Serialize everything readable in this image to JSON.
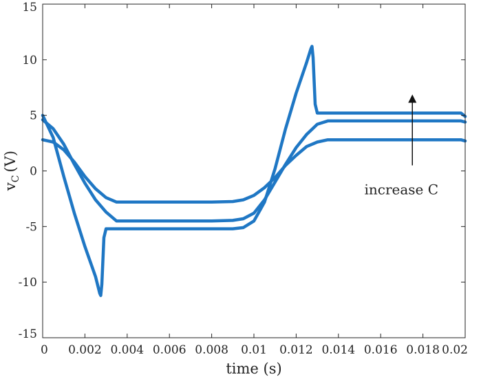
{
  "chart_data": {
    "type": "line",
    "title": "",
    "xlabel": "time (s)",
    "ylabel": "v",
    "ylabel_sub": "C",
    "ylabel_unit": "(V)",
    "xlim": [
      0,
      0.02
    ],
    "ylim": [
      -15,
      15
    ],
    "grid": false,
    "line_color": "#1f77c4",
    "x_ticks": [
      0,
      0.002,
      0.004,
      0.006,
      0.008,
      0.01,
      0.012,
      0.014,
      0.016,
      0.018,
      0.02
    ],
    "x_tick_labels": [
      "0",
      "0.002",
      "0.004",
      "0.006",
      "0.008",
      "0.01",
      "0.012",
      "0.014",
      "0.016",
      "0.018",
      "0.02"
    ],
    "y_ticks": [
      -15,
      -10,
      -5,
      0,
      5,
      10,
      15
    ],
    "y_tick_labels": [
      "-15",
      "-10",
      "-5",
      "0",
      "5",
      "10",
      "15"
    ],
    "series": [
      {
        "x": [
          0,
          0.0005,
          0.001,
          0.0015,
          0.002,
          0.0025,
          0.0027,
          0.00275,
          0.0028,
          0.0029,
          0.003,
          0.004,
          0.005,
          0.006,
          0.007,
          0.008,
          0.009,
          0.0095,
          0.01,
          0.0105,
          0.011,
          0.0115,
          0.012,
          0.0125,
          0.0127,
          0.01275,
          0.0128,
          0.0129,
          0.013,
          0.014,
          0.015,
          0.016,
          0.017,
          0.018,
          0.019,
          0.0198,
          0.02
        ],
        "y": [
          5.0,
          3.0,
          -0.5,
          -3.8,
          -6.8,
          -9.5,
          -11.0,
          -11.2,
          -10.2,
          -6.0,
          -5.2,
          -5.2,
          -5.2,
          -5.2,
          -5.2,
          -5.2,
          -5.2,
          -5.1,
          -4.5,
          -2.8,
          0.2,
          3.8,
          7.0,
          9.8,
          11.0,
          11.2,
          10.2,
          6.0,
          5.2,
          5.2,
          5.2,
          5.2,
          5.2,
          5.2,
          5.2,
          5.2,
          4.9
        ]
      },
      {
        "x": [
          0,
          0.0005,
          0.001,
          0.0015,
          0.002,
          0.0025,
          0.003,
          0.0035,
          0.004,
          0.005,
          0.006,
          0.007,
          0.008,
          0.009,
          0.0095,
          0.01,
          0.0105,
          0.011,
          0.0115,
          0.012,
          0.0125,
          0.013,
          0.0135,
          0.014,
          0.015,
          0.016,
          0.017,
          0.018,
          0.019,
          0.0198,
          0.02
        ],
        "y": [
          4.6,
          3.8,
          2.4,
          0.6,
          -1.1,
          -2.6,
          -3.7,
          -4.5,
          -4.5,
          -4.5,
          -4.5,
          -4.5,
          -4.5,
          -4.45,
          -4.3,
          -3.8,
          -2.6,
          -1.0,
          0.6,
          2.1,
          3.3,
          4.2,
          4.5,
          4.5,
          4.5,
          4.5,
          4.5,
          4.5,
          4.5,
          4.5,
          4.4
        ]
      },
      {
        "x": [
          0,
          0.0005,
          0.001,
          0.0015,
          0.002,
          0.0025,
          0.003,
          0.0035,
          0.004,
          0.005,
          0.006,
          0.007,
          0.008,
          0.009,
          0.0095,
          0.01,
          0.0105,
          0.011,
          0.0115,
          0.012,
          0.0125,
          0.013,
          0.0135,
          0.014,
          0.015,
          0.016,
          0.017,
          0.018,
          0.019,
          0.0198,
          0.02
        ],
        "y": [
          2.8,
          2.6,
          1.9,
          0.8,
          -0.5,
          -1.6,
          -2.4,
          -2.8,
          -2.8,
          -2.8,
          -2.8,
          -2.8,
          -2.8,
          -2.75,
          -2.6,
          -2.2,
          -1.5,
          -0.6,
          0.5,
          1.4,
          2.2,
          2.6,
          2.8,
          2.8,
          2.8,
          2.8,
          2.8,
          2.8,
          2.8,
          2.8,
          2.7
        ]
      }
    ],
    "annotation": {
      "text": "increase C",
      "arrow_x": 0.0175,
      "arrow_y_from": 0.5,
      "arrow_y_to": 7.0
    }
  }
}
